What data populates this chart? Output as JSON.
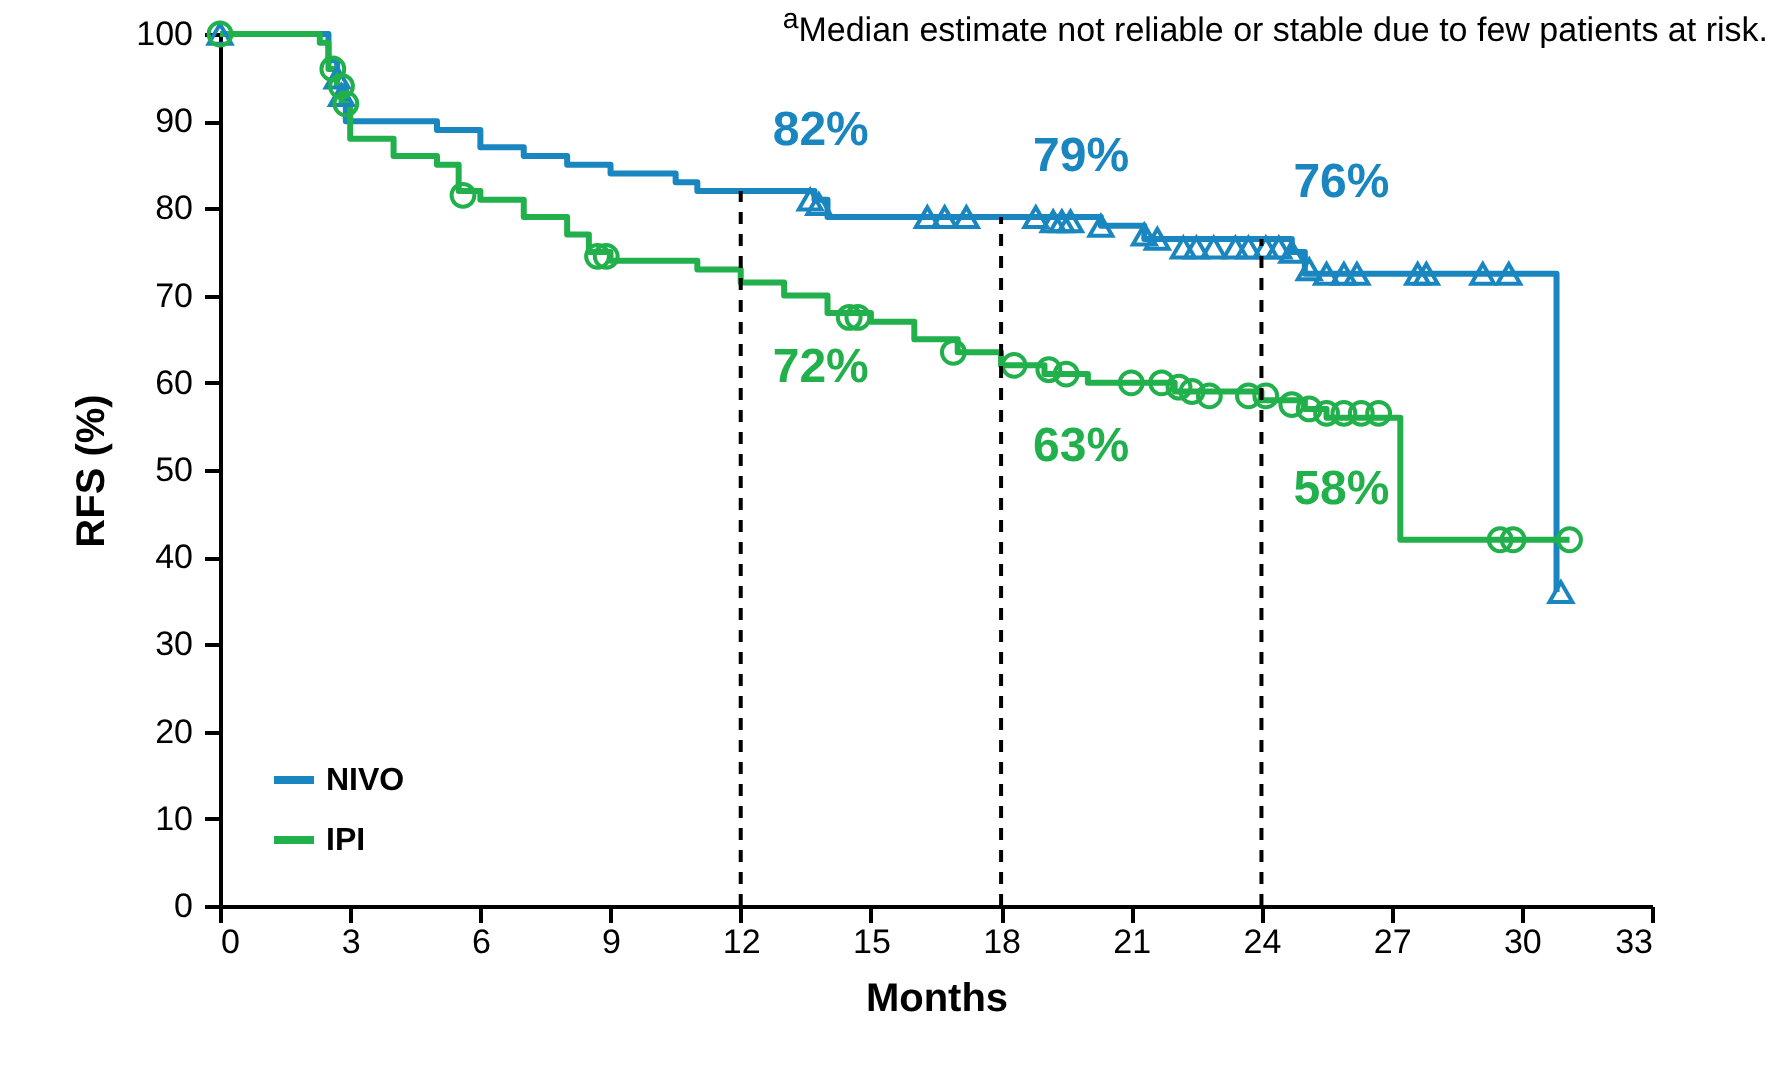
{
  "chart_data": {
    "type": "step",
    "xlabel": "Months",
    "ylabel": "RFS (%)",
    "xlim": [
      0,
      33
    ],
    "xticks": [
      0,
      3,
      6,
      9,
      12,
      15,
      18,
      21,
      24,
      27,
      30,
      33
    ],
    "ylim": [
      0,
      100
    ],
    "yticks": [
      0,
      10,
      20,
      30,
      40,
      50,
      60,
      70,
      80,
      90,
      100
    ],
    "legend": "bottom left",
    "grid": false,
    "line_style": "solid",
    "series": [
      {
        "name": "NIVO",
        "color": "#1a86c0",
        "x": [
          0,
          2.2,
          2.5,
          2.7,
          2.9,
          5,
          6,
          7,
          8,
          9,
          10.5,
          11,
          13.7,
          14,
          20.3,
          21.3,
          24.7,
          25,
          30.8
        ],
        "values": [
          100,
          100,
          97,
          94,
          90,
          89,
          87,
          86,
          85,
          84,
          83,
          82,
          81,
          79,
          78,
          76.5,
          75,
          72.5,
          36
        ]
      },
      {
        "name": "IPI",
        "color": "#21b04b",
        "x": [
          0,
          2.3,
          2.5,
          2.7,
          2.8,
          3,
          4,
          5,
          5.5,
          6,
          7,
          8,
          8.5,
          9,
          11,
          12,
          13,
          14,
          15,
          16,
          17,
          18,
          19,
          20,
          22,
          24,
          25,
          25.5,
          27.2,
          31.1
        ],
        "values": [
          100,
          99,
          96,
          94,
          92,
          88,
          86,
          85,
          82,
          81,
          79,
          77,
          75,
          74,
          73,
          71.5,
          70,
          68,
          67,
          65,
          63.5,
          62,
          61,
          60,
          59,
          58,
          57,
          56,
          42,
          42
        ]
      },
      {
        "type": "scatter",
        "marker": "triangle",
        "color": "#1a86c0",
        "x": [
          0,
          2.7,
          2.8,
          13.6,
          13.8,
          16.3,
          16.7,
          17.2,
          18.8,
          19.2,
          19.4,
          19.6,
          20.3,
          21.3,
          21.6,
          22.2,
          22.5,
          22.9,
          23.4,
          23.7,
          24.1,
          24.4,
          24.7,
          25.1,
          25.5,
          25.9,
          26.2,
          27.6,
          27.8,
          29.1,
          29.7,
          30.9
        ],
        "values": [
          100,
          95,
          93,
          81,
          80.5,
          79,
          79,
          79,
          79,
          78.5,
          78.5,
          78.5,
          78,
          77,
          76.5,
          75.5,
          75.5,
          75.5,
          75.5,
          75.5,
          75.5,
          75.5,
          75,
          73,
          72.5,
          72.5,
          72.5,
          72.5,
          72.5,
          72.5,
          72.5,
          36
        ]
      },
      {
        "type": "scatter",
        "marker": "circle",
        "color": "#21b04b",
        "x": [
          0,
          2.6,
          2.8,
          2.9,
          5.6,
          8.7,
          8.9,
          14.5,
          14.7,
          16.9,
          18.3,
          19.1,
          19.5,
          21,
          21.7,
          22.1,
          22.4,
          22.8,
          23.7,
          24.1,
          24.7,
          25.1,
          25.5,
          25.9,
          26.3,
          26.7,
          29.5,
          29.8,
          31.1
        ],
        "values": [
          100,
          96,
          94,
          92,
          81.5,
          74.5,
          74.5,
          67.5,
          67.5,
          63.5,
          62,
          61.5,
          61,
          60,
          60,
          59.5,
          59,
          58.5,
          58.5,
          58.5,
          57.5,
          57,
          56.5,
          56.5,
          56.5,
          56.5,
          42,
          42,
          42
        ]
      }
    ],
    "ref_lines": [
      {
        "axis": "x",
        "value": 12,
        "line_style": "dashed",
        "color": "#000000"
      },
      {
        "axis": "x",
        "value": 18,
        "line_style": "dashed",
        "color": "#000000"
      },
      {
        "axis": "x",
        "value": 24,
        "line_style": "dashed",
        "color": "#000000"
      }
    ],
    "annotations": [
      {
        "text": "82%",
        "x": 12,
        "y": 82
      },
      {
        "text": "79%",
        "x": 18,
        "y": 79
      },
      {
        "text": "76%",
        "x": 24,
        "y": 76
      },
      {
        "text": "72%",
        "x": 12,
        "y": 72
      },
      {
        "text": "63%",
        "x": 18,
        "y": 63
      },
      {
        "text": "58%",
        "x": 24,
        "y": 58
      },
      "$^{a}$Median estimate not reliable or stable due to few patients at risk."
    ]
  }
}
